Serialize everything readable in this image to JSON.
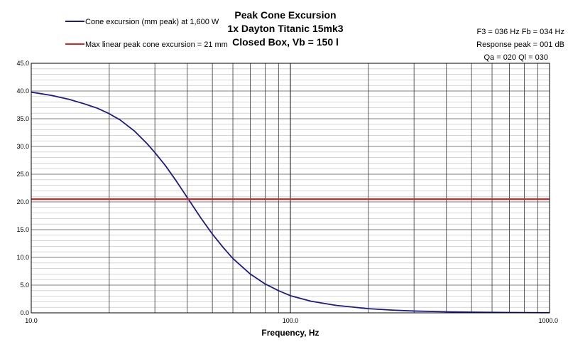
{
  "chart_data": {
    "type": "line",
    "title_lines": [
      "Peak Cone Excursion",
      "1x Dayton Titanic 15mk3",
      "Closed Box, Vb = 150 l"
    ],
    "xlabel": "Frequency, Hz",
    "ylabel": "",
    "x_scale": "log",
    "xlim": [
      10,
      1000
    ],
    "ylim": [
      0,
      45
    ],
    "x_ticks": [
      "10.0",
      "100.0",
      "1000.0"
    ],
    "y_ticks": [
      "0.0",
      "5.0",
      "10.0",
      "15.0",
      "20.0",
      "25.0",
      "30.0",
      "35.0",
      "40.0",
      "45.0"
    ],
    "grid": true,
    "legend_position": "top-left",
    "info_lines": [
      "F3 = 036 Hz  Fb = 034 Hz",
      "Response peak = 001 dB",
      "Qa = 020  Ql = 030"
    ],
    "series": [
      {
        "name": "Cone excursion (mm peak) at 1,600 W",
        "color": "#1a1a8c",
        "x": [
          10,
          12,
          14,
          16,
          18,
          20,
          22,
          25,
          28,
          30,
          33,
          36,
          40,
          45,
          50,
          55,
          60,
          70,
          80,
          90,
          100,
          120,
          150,
          200,
          250,
          300,
          400,
          500,
          700,
          1000
        ],
        "y": [
          39.8,
          39.2,
          38.5,
          37.7,
          36.9,
          35.9,
          34.8,
          32.8,
          30.5,
          28.9,
          26.5,
          24.0,
          20.8,
          17.2,
          14.2,
          11.8,
          9.8,
          7.0,
          5.2,
          4.0,
          3.1,
          2.1,
          1.35,
          0.75,
          0.48,
          0.33,
          0.19,
          0.12,
          0.06,
          0.03
        ]
      },
      {
        "name": "Max linear peak cone excursion = 21 mm",
        "color": "#dd2222",
        "x": [
          10,
          1000
        ],
        "y": [
          20.5,
          20.5
        ]
      }
    ]
  }
}
